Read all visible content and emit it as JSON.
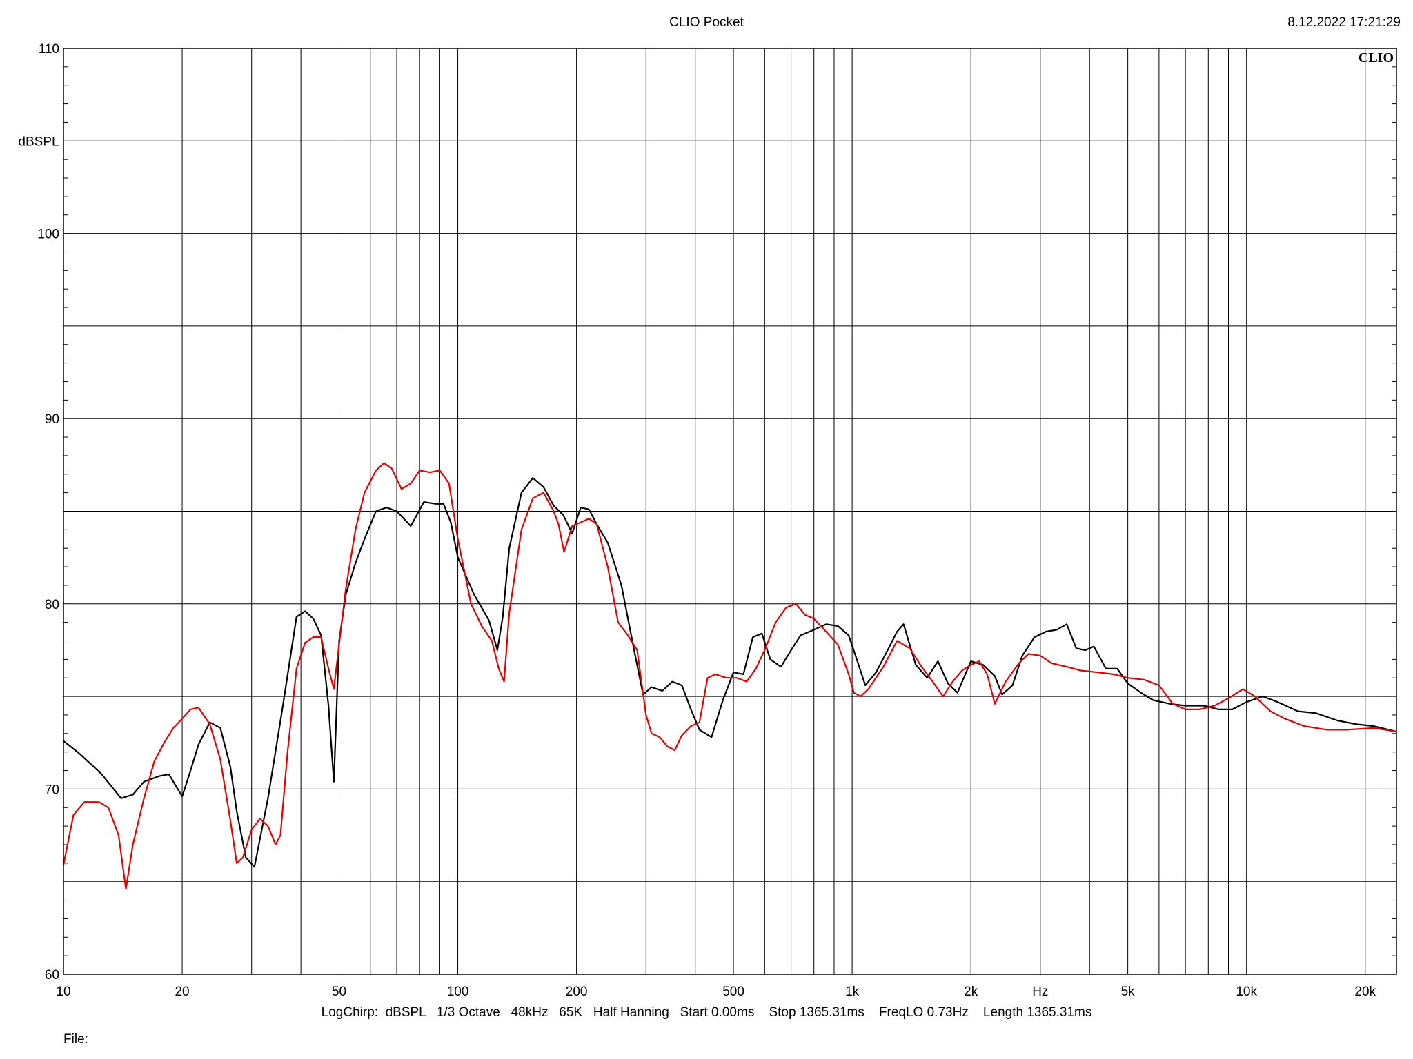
{
  "title": "CLIO Pocket",
  "timestamp": "8.12.2022 17:21:29",
  "brand": "CLIO",
  "footer": "LogChirp:  dBSPL   1/3 Octave   48kHz   65K   Half Hanning   Start 0.00ms    Stop 1365.31ms    FreqLO 0.73Hz    Length 1365.31ms",
  "file_label": "File:",
  "chart_data": {
    "type": "line",
    "xscale": "log",
    "xlim": [
      10,
      24000
    ],
    "ylim": [
      60,
      110
    ],
    "ylabel": "dBSPL",
    "xunit_label": "Hz",
    "grid": true,
    "legend": "none",
    "yticks": [
      60,
      70,
      80,
      90,
      100,
      110
    ],
    "xticks": [
      {
        "value": 10,
        "label": "10"
      },
      {
        "value": 20,
        "label": "20"
      },
      {
        "value": 50,
        "label": "50"
      },
      {
        "value": 100,
        "label": "100"
      },
      {
        "value": 200,
        "label": "200"
      },
      {
        "value": 500,
        "label": "500"
      },
      {
        "value": 1000,
        "label": "1k"
      },
      {
        "value": 2000,
        "label": "2k"
      },
      {
        "value": 5000,
        "label": "5k"
      },
      {
        "value": 10000,
        "label": "10k"
      },
      {
        "value": 20000,
        "label": "20k"
      }
    ],
    "series": [
      {
        "color": "#000000",
        "x": [
          10,
          11,
          12.5,
          14,
          15,
          16,
          17.5,
          18.5,
          20,
          21,
          22,
          23.5,
          25,
          26.5,
          27.5,
          29,
          30.5,
          33,
          36,
          39,
          41,
          43,
          45,
          47,
          48.5,
          50,
          52,
          55,
          58,
          62,
          66,
          70,
          76,
          82,
          88,
          92,
          96,
          100,
          110,
          120,
          126,
          130,
          135,
          145,
          155,
          165,
          175,
          185,
          195,
          205,
          215,
          225,
          240,
          260,
          280,
          295,
          310,
          330,
          350,
          370,
          390,
          410,
          440,
          470,
          500,
          530,
          560,
          590,
          620,
          660,
          700,
          740,
          800,
          860,
          920,
          980,
          1020,
          1080,
          1150,
          1230,
          1300,
          1350,
          1450,
          1550,
          1650,
          1750,
          1850,
          2000,
          2150,
          2300,
          2400,
          2550,
          2700,
          2900,
          3100,
          3300,
          3500,
          3700,
          3900,
          4100,
          4400,
          4700,
          5000,
          5400,
          5800,
          6400,
          7000,
          7800,
          8500,
          9200,
          10000,
          11000,
          12000,
          13500,
          15000,
          17000,
          19000,
          21000,
          24000
        ],
        "values": [
          72.6,
          71.9,
          70.8,
          69.5,
          69.7,
          70.4,
          70.7,
          70.8,
          69.6,
          71.0,
          72.4,
          73.6,
          73.3,
          71.2,
          68.8,
          66.3,
          65.8,
          69.5,
          74.5,
          79.3,
          79.6,
          79.2,
          78.3,
          74.5,
          70.4,
          78.0,
          80.5,
          82.2,
          83.5,
          85.0,
          85.2,
          85.0,
          84.2,
          85.5,
          85.4,
          85.4,
          84.4,
          82.5,
          80.5,
          79.1,
          77.5,
          79.3,
          83.0,
          86.0,
          86.8,
          86.3,
          85.3,
          84.8,
          83.8,
          85.2,
          85.1,
          84.3,
          83.3,
          81.0,
          77.5,
          75.1,
          75.5,
          75.3,
          75.8,
          75.6,
          74.3,
          73.2,
          72.8,
          74.8,
          76.3,
          76.2,
          78.2,
          78.4,
          77.0,
          76.6,
          77.5,
          78.3,
          78.6,
          78.9,
          78.8,
          78.3,
          77.2,
          75.6,
          76.3,
          77.5,
          78.5,
          78.9,
          76.7,
          76.0,
          76.9,
          75.7,
          75.2,
          76.9,
          76.7,
          76.1,
          75.1,
          75.6,
          77.2,
          78.2,
          78.5,
          78.6,
          78.9,
          77.6,
          77.5,
          77.7,
          76.5,
          76.5,
          75.7,
          75.2,
          74.8,
          74.6,
          74.5,
          74.5,
          74.3,
          74.3,
          74.7,
          75.0,
          74.7,
          74.2,
          74.1,
          73.7,
          73.5,
          73.4,
          73.1
        ]
      },
      {
        "color": "#e00000",
        "x": [
          10,
          10.6,
          11.3,
          12.3,
          13,
          13.8,
          14.4,
          15,
          16,
          17,
          18,
          19,
          20,
          21,
          22,
          23.5,
          25,
          26.5,
          27.5,
          28.5,
          30,
          31.5,
          33,
          34.5,
          35.5,
          37,
          39,
          41,
          43,
          45,
          47,
          48.5,
          50,
          52,
          55,
          58,
          62,
          65,
          68,
          72,
          76,
          80,
          85,
          90,
          95,
          100,
          108,
          115,
          122,
          127,
          131,
          135,
          145,
          155,
          165,
          175,
          180,
          186,
          195,
          205,
          215,
          225,
          240,
          255,
          270,
          285,
          300,
          310,
          325,
          340,
          355,
          370,
          390,
          410,
          430,
          450,
          480,
          510,
          540,
          570,
          600,
          640,
          680,
          720,
          760,
          800,
          850,
          920,
          980,
          1010,
          1050,
          1100,
          1200,
          1300,
          1400,
          1500,
          1600,
          1700,
          1800,
          1900,
          2000,
          2100,
          2200,
          2300,
          2450,
          2650,
          2800,
          3000,
          3200,
          3500,
          3800,
          4200,
          4600,
          5000,
          5500,
          6000,
          6500,
          7000,
          7600,
          8300,
          9000,
          9800,
          10500,
          11500,
          12500,
          14000,
          16000,
          18000,
          21000,
          24000
        ],
        "values": [
          65.9,
          68.6,
          69.3,
          69.3,
          69.0,
          67.5,
          64.6,
          67.0,
          69.5,
          71.5,
          72.5,
          73.3,
          73.8,
          74.3,
          74.4,
          73.5,
          71.6,
          68.3,
          66.0,
          66.3,
          67.8,
          68.4,
          68.0,
          67.0,
          67.5,
          72.0,
          76.5,
          77.9,
          78.2,
          78.2,
          76.5,
          75.4,
          77.8,
          80.8,
          84.0,
          86.0,
          87.2,
          87.6,
          87.3,
          86.2,
          86.5,
          87.2,
          87.1,
          87.2,
          86.5,
          83.5,
          80.0,
          78.8,
          78.0,
          76.5,
          75.8,
          79.5,
          84.0,
          85.7,
          86.0,
          85.0,
          84.3,
          82.8,
          84.2,
          84.4,
          84.6,
          84.3,
          82.0,
          79.0,
          78.3,
          77.5,
          74.0,
          73.0,
          72.8,
          72.3,
          72.1,
          72.9,
          73.4,
          73.6,
          76.0,
          76.2,
          76.0,
          76.0,
          75.8,
          76.5,
          77.5,
          79.0,
          79.8,
          80.0,
          79.4,
          79.2,
          78.6,
          77.8,
          76.2,
          75.2,
          75.0,
          75.4,
          76.6,
          78.0,
          77.6,
          76.6,
          75.8,
          75.0,
          75.8,
          76.4,
          76.7,
          76.9,
          76.2,
          74.6,
          75.8,
          76.8,
          77.3,
          77.2,
          76.8,
          76.6,
          76.4,
          76.3,
          76.2,
          76.0,
          75.9,
          75.6,
          74.6,
          74.3,
          74.3,
          74.5,
          74.9,
          75.4,
          75.0,
          74.2,
          73.8,
          73.4,
          73.2,
          73.2,
          73.3,
          73.1
        ]
      }
    ]
  }
}
